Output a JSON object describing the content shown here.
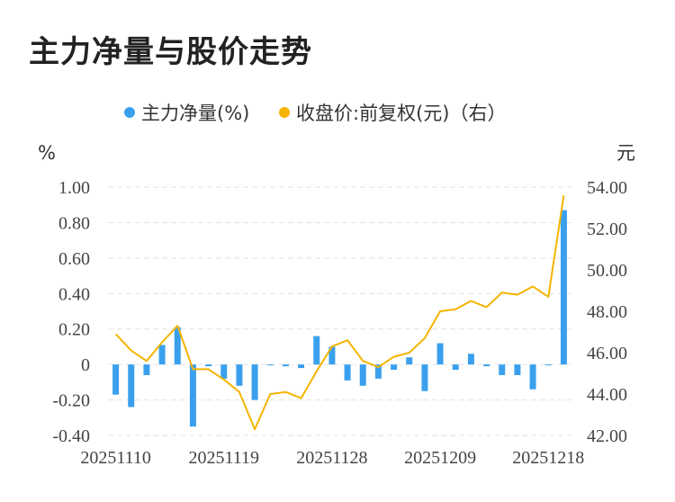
{
  "title": "主力净量与股价走势",
  "colors": {
    "bar": "#3aa0ee",
    "line": "#f4b400",
    "grid": "#e2e2e2"
  },
  "chart_data": {
    "type": "bar+line",
    "title": "主力净量与股价走势",
    "left_axis": {
      "unit": "%",
      "ticks": [
        "1.00",
        "0.80",
        "0.60",
        "0.40",
        "0.20",
        "0",
        "-0.20",
        "-0.40"
      ],
      "ylim": [
        -0.4,
        1.0
      ]
    },
    "right_axis": {
      "unit": "元",
      "ticks": [
        "54.00",
        "52.00",
        "50.00",
        "48.00",
        "46.00",
        "44.00",
        "42.00"
      ],
      "ylim": [
        42,
        54
      ]
    },
    "x_tick_labels": [
      "20251110",
      "20251119",
      "20251128",
      "20251209",
      "20251218"
    ],
    "x_tick_indices": [
      0,
      7,
      14,
      21,
      28
    ],
    "legend": [
      "主力净量(%)",
      "收盘价:前复权(元)（右）"
    ],
    "legend_position": "top-center",
    "grid": true,
    "series": [
      {
        "name": "主力净量(%)",
        "type": "bar",
        "axis": "left",
        "values": [
          -0.17,
          -0.24,
          -0.06,
          0.11,
          0.21,
          -0.35,
          -0.01,
          -0.08,
          -0.12,
          -0.2,
          -0.005,
          -0.01,
          -0.02,
          0.16,
          0.1,
          -0.09,
          -0.12,
          -0.08,
          -0.03,
          0.04,
          -0.15,
          0.12,
          -0.03,
          0.06,
          -0.01,
          -0.06,
          -0.06,
          -0.14,
          -0.005,
          0.87
        ]
      },
      {
        "name": "收盘价:前复权(元)（右）",
        "type": "line",
        "axis": "right",
        "values": [
          46.9,
          46.1,
          45.6,
          46.5,
          47.3,
          45.2,
          45.2,
          44.7,
          44.1,
          42.3,
          44.0,
          44.1,
          43.8,
          45.1,
          46.3,
          46.6,
          45.6,
          45.3,
          45.8,
          46.0,
          46.7,
          48.0,
          48.1,
          48.5,
          48.2,
          48.9,
          48.8,
          49.2,
          48.7,
          53.6
        ]
      }
    ]
  }
}
